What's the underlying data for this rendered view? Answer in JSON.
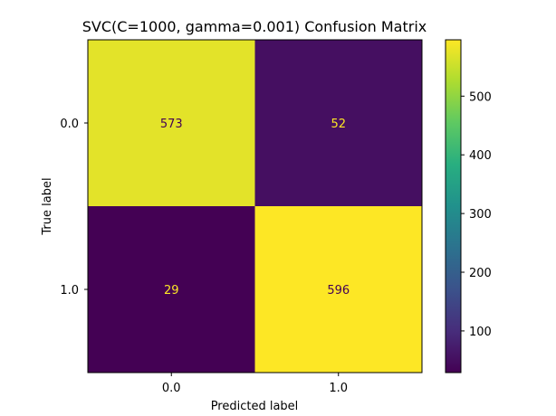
{
  "chart_data": {
    "type": "heatmap",
    "title": "SVC(C=1000, gamma=0.001) Confusion Matrix",
    "xlabel": "Predicted label",
    "ylabel": "True label",
    "x_categories": [
      "0.0",
      "1.0"
    ],
    "y_categories": [
      "0.0",
      "1.0"
    ],
    "matrix": [
      [
        573,
        52
      ],
      [
        29,
        596
      ]
    ],
    "colormap": "viridis",
    "colorbar": {
      "vmin": 29,
      "vmax": 596,
      "ticks": [
        100,
        200,
        300,
        400,
        500
      ]
    },
    "grid": false
  },
  "colors": {
    "text_on_dark": "#fde725",
    "text_on_light": "#440154"
  }
}
